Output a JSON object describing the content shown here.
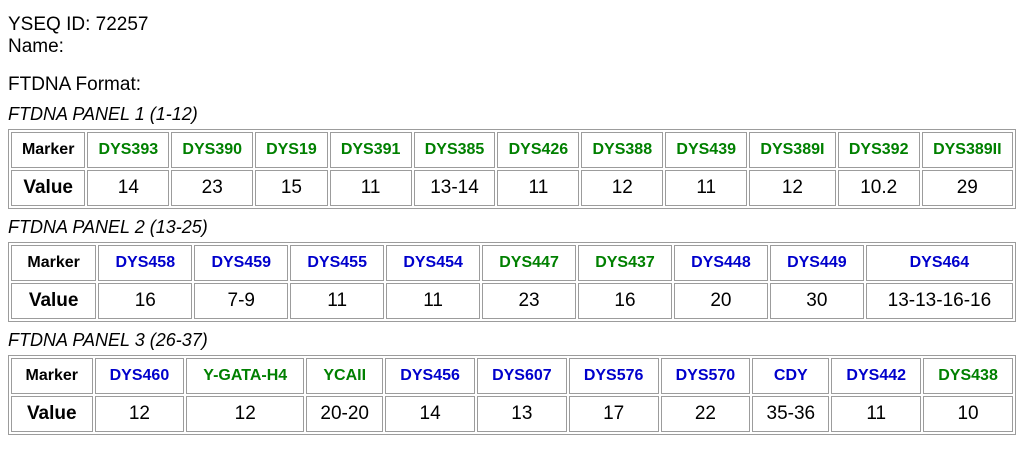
{
  "header": {
    "yseq_id_line": "YSEQ ID: 72257",
    "name_line": "Name:",
    "format_heading": "FTDNA Format:"
  },
  "table_labels": {
    "marker": "Marker",
    "value": "Value"
  },
  "colors": {
    "green": "#008000",
    "blue": "#0000cc",
    "border": "#9c9c9c",
    "text": "#000000",
    "background": "#ffffff"
  },
  "panels": [
    {
      "title": "FTDNA PANEL 1 (1-12)",
      "markers": [
        {
          "name": "DYS393",
          "color": "green",
          "value": "14"
        },
        {
          "name": "DYS390",
          "color": "green",
          "value": "23"
        },
        {
          "name": "DYS19",
          "color": "green",
          "value": "15"
        },
        {
          "name": "DYS391",
          "color": "green",
          "value": "11"
        },
        {
          "name": "DYS385",
          "color": "green",
          "value": "13-14"
        },
        {
          "name": "DYS426",
          "color": "green",
          "value": "11"
        },
        {
          "name": "DYS388",
          "color": "green",
          "value": "12"
        },
        {
          "name": "DYS439",
          "color": "green",
          "value": "11"
        },
        {
          "name": "DYS389I",
          "color": "green",
          "value": "12"
        },
        {
          "name": "DYS392",
          "color": "green",
          "value": "10.2"
        },
        {
          "name": "DYS389II",
          "color": "green",
          "value": "29"
        }
      ]
    },
    {
      "title": "FTDNA PANEL 2 (13-25)",
      "markers": [
        {
          "name": "DYS458",
          "color": "blue",
          "value": "16"
        },
        {
          "name": "DYS459",
          "color": "blue",
          "value": "7-9"
        },
        {
          "name": "DYS455",
          "color": "blue",
          "value": "11"
        },
        {
          "name": "DYS454",
          "color": "blue",
          "value": "11"
        },
        {
          "name": "DYS447",
          "color": "green",
          "value": "23"
        },
        {
          "name": "DYS437",
          "color": "green",
          "value": "16"
        },
        {
          "name": "DYS448",
          "color": "blue",
          "value": "20"
        },
        {
          "name": "DYS449",
          "color": "blue",
          "value": "30"
        },
        {
          "name": "DYS464",
          "color": "blue",
          "value": "13-13-16-16"
        }
      ]
    },
    {
      "title": "FTDNA PANEL 3 (26-37)",
      "markers": [
        {
          "name": "DYS460",
          "color": "blue",
          "value": "12"
        },
        {
          "name": "Y-GATA-H4",
          "color": "green",
          "value": "12"
        },
        {
          "name": "YCAII",
          "color": "green",
          "value": "20-20"
        },
        {
          "name": "DYS456",
          "color": "blue",
          "value": "14"
        },
        {
          "name": "DYS607",
          "color": "blue",
          "value": "13"
        },
        {
          "name": "DYS576",
          "color": "blue",
          "value": "17"
        },
        {
          "name": "DYS570",
          "color": "blue",
          "value": "22"
        },
        {
          "name": "CDY",
          "color": "blue",
          "value": "35-36"
        },
        {
          "name": "DYS442",
          "color": "blue",
          "value": "11"
        },
        {
          "name": "DYS438",
          "color": "green",
          "value": "10"
        }
      ]
    }
  ]
}
